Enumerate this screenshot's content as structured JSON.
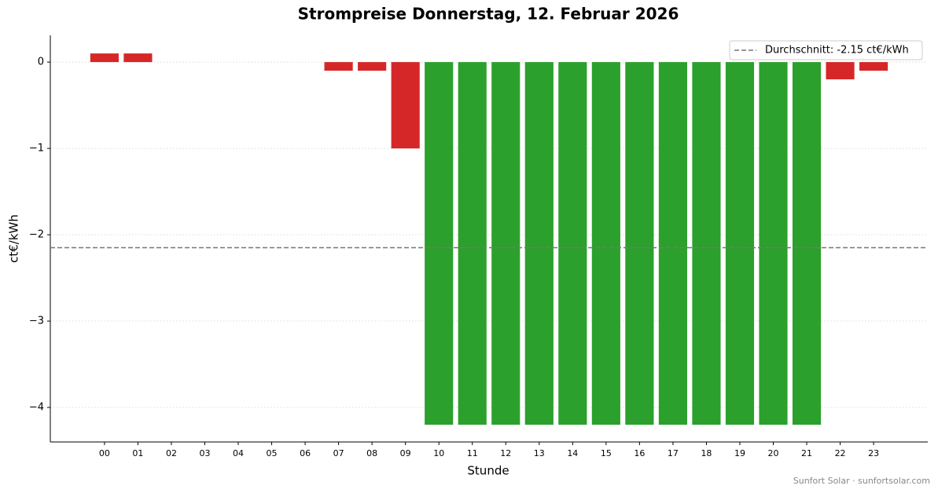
{
  "chart_data": {
    "type": "bar",
    "title": "Strompreise Donnerstag, 12. Februar 2026",
    "x_label": "Stunde",
    "y_label": "ct€/kWh",
    "categories": [
      "00",
      "01",
      "02",
      "03",
      "04",
      "05",
      "06",
      "07",
      "08",
      "09",
      "10",
      "11",
      "12",
      "13",
      "14",
      "15",
      "16",
      "17",
      "18",
      "19",
      "20",
      "21",
      "22",
      "23"
    ],
    "values": [
      0.1,
      0.1,
      0,
      0,
      0,
      0,
      0,
      -0.1,
      -0.1,
      -1.0,
      -4.2,
      -4.2,
      -4.2,
      -4.2,
      -4.2,
      -4.2,
      -4.2,
      -4.2,
      -4.2,
      -4.2,
      -4.2,
      -4.2,
      -0.2,
      -0.1
    ],
    "colors": [
      "#d62728",
      "#d62728",
      "#d62728",
      "#d62728",
      "#d62728",
      "#d62728",
      "#d62728",
      "#d62728",
      "#d62728",
      "#d62728",
      "#2ca02c",
      "#2ca02c",
      "#2ca02c",
      "#2ca02c",
      "#2ca02c",
      "#2ca02c",
      "#2ca02c",
      "#2ca02c",
      "#2ca02c",
      "#2ca02c",
      "#2ca02c",
      "#2ca02c",
      "#d62728",
      "#d62728"
    ],
    "ylim": [
      -4.4,
      0.31
    ],
    "yticks": [
      0,
      {
        "value": -1,
        "label": "−1"
      },
      {
        "value": -2,
        "label": "−2"
      },
      {
        "value": -3,
        "label": "−3"
      },
      {
        "value": -4,
        "label": "−4"
      }
    ],
    "grid": true,
    "average": {
      "value": -2.15,
      "label": "Durchschnitt: -2.15 ct€/kWh",
      "color": "#777777"
    },
    "legend": "upper right",
    "footer": "Sunfort Solar · sunfortsolar.com"
  }
}
